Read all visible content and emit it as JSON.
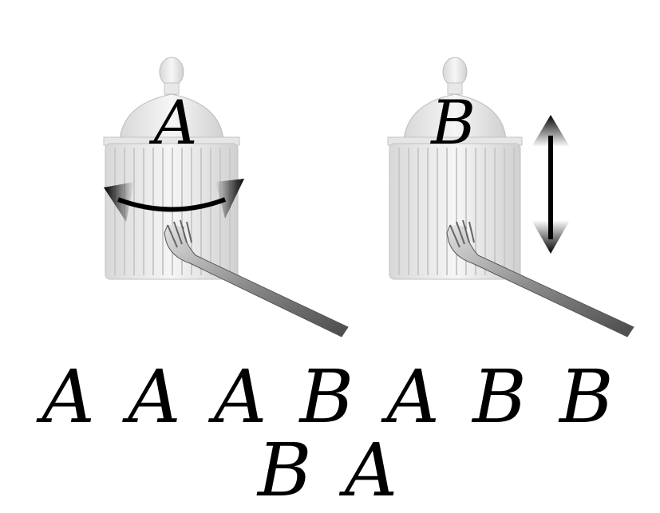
{
  "panels": [
    {
      "label": "A",
      "motion": "horizontal-rotation"
    },
    {
      "label": "B",
      "motion": "vertical-up-down"
    }
  ],
  "sequence": [
    "A",
    "A",
    "A",
    "B",
    "A",
    "B",
    "B",
    "B",
    "A"
  ],
  "icons": [
    "glass-jar-icon",
    "fork-icon",
    "curved-double-arrow-icon",
    "vertical-double-arrow-icon"
  ]
}
